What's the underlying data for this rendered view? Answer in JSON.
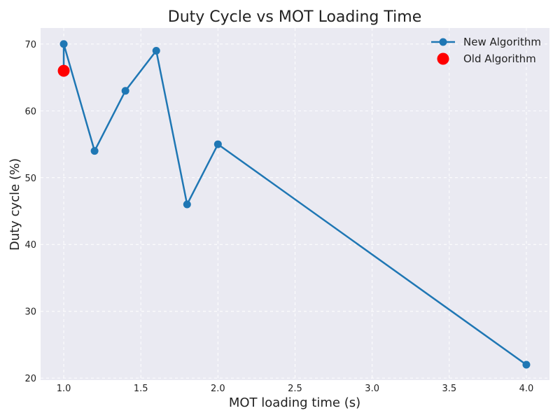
{
  "chart_data": {
    "type": "line",
    "title": "Duty Cycle vs MOT Loading Time",
    "xlabel": "MOT loading time (s)",
    "ylabel": "Duty cycle (%)",
    "xlim": [
      0.85,
      4.15
    ],
    "ylim": [
      19.7,
      72.4
    ],
    "x_ticks": [
      1.0,
      1.5,
      2.0,
      2.5,
      3.0,
      3.5,
      4.0
    ],
    "x_tick_labels": [
      "1.0",
      "1.5",
      "2.0",
      "2.5",
      "3.0",
      "3.5",
      "4.0"
    ],
    "y_ticks": [
      20,
      30,
      40,
      50,
      60,
      70
    ],
    "y_tick_labels": [
      "20",
      "30",
      "40",
      "50",
      "60",
      "70"
    ],
    "grid": true,
    "legend": "top-right",
    "series": [
      {
        "name": "New Algorithm",
        "kind": "line-marker",
        "color": "#1f77b4",
        "x": [
          1.0,
          1.0,
          1.2,
          1.4,
          1.6,
          1.8,
          2.0,
          4.0
        ],
        "y": [
          66,
          70,
          54,
          63,
          69,
          46,
          55,
          22
        ]
      },
      {
        "name": "Old Algorithm",
        "kind": "marker",
        "color": "#ff0000",
        "x": [
          1.0
        ],
        "y": [
          66
        ]
      }
    ],
    "style": {
      "background": "#ffffff",
      "plot_background": "#eaeaf2",
      "grid_color": "#ffffff"
    }
  }
}
